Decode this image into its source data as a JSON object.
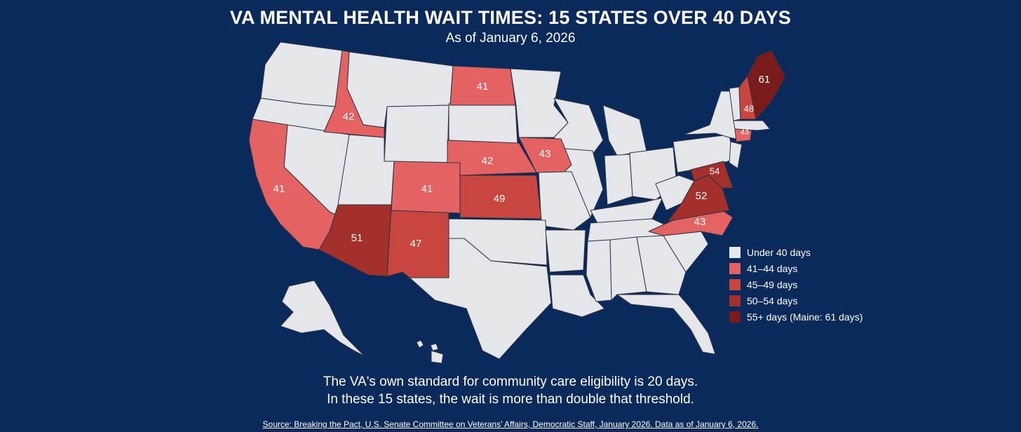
{
  "title": "VA MENTAL HEALTH WAIT TIMES: 15 STATES OVER 40 DAYS",
  "subtitle": "As of January 6, 2026",
  "colors": {
    "background": "#0b2a5c",
    "under40": "#e4e6ea",
    "d41_44": "#e46262",
    "d45_49": "#c84540",
    "d50_54": "#a3302b",
    "d55plus": "#7a1b1b"
  },
  "map": {
    "states": [
      {
        "name": "Idaho",
        "days": "42",
        "tier": "d41_44"
      },
      {
        "name": "California",
        "days": "41",
        "tier": "d41_44"
      },
      {
        "name": "Arizona",
        "days": "51",
        "tier": "d50_54"
      },
      {
        "name": "New Mexico",
        "days": "47",
        "tier": "d45_49"
      },
      {
        "name": "Colorado",
        "days": "41",
        "tier": "d41_44"
      },
      {
        "name": "North Dakota",
        "days": "41",
        "tier": "d41_44"
      },
      {
        "name": "Nebraska",
        "days": "42",
        "tier": "d41_44"
      },
      {
        "name": "Kansas",
        "days": "49",
        "tier": "d45_49"
      },
      {
        "name": "Iowa",
        "days": "43",
        "tier": "d41_44"
      },
      {
        "name": "North Carolina",
        "days": "43",
        "tier": "d41_44"
      },
      {
        "name": "Virginia",
        "days": "52",
        "tier": "d50_54"
      },
      {
        "name": "Maryland",
        "days": "54",
        "tier": "d50_54"
      },
      {
        "name": "Connecticut",
        "days": "43",
        "tier": "d41_44"
      },
      {
        "name": "New Hampshire",
        "days": "48",
        "tier": "d45_49"
      },
      {
        "name": "Maine",
        "days": "61",
        "tier": "d55plus"
      }
    ]
  },
  "legend": {
    "items": [
      {
        "label": "Under 40 days",
        "tier": "under40"
      },
      {
        "label": "41–44 days",
        "tier": "d41_44"
      },
      {
        "label": "45–49 days",
        "tier": "d45_49"
      },
      {
        "label": "50–54 days",
        "tier": "d50_54"
      },
      {
        "label": "55+ days (Maine: 61 days)",
        "tier": "d55plus"
      }
    ]
  },
  "note": {
    "line1": "The VA's own standard for community care eligibility is 20 days.",
    "line2": "In these 15 states, the wait is more than double that threshold."
  },
  "source": "Source: Breaking the Pact, U.S. Senate Committee on Veterans' Affairs, Democratic Staff, January 2026. Data as of January 6, 2026."
}
